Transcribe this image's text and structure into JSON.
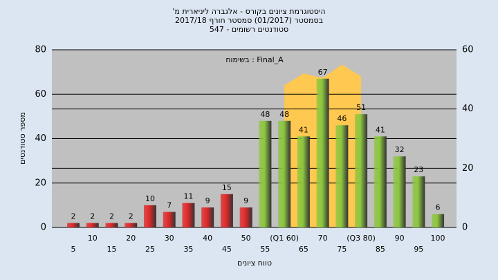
{
  "chart_data": {
    "type": "bar",
    "title": [
      "היסטוגרמת ציונים בקורס - אלגברה ליניארית מ'",
      "בסמסטר  (01/2017)  סמסטר חורף 2017/18",
      "סטודנטים רשומים - 547"
    ],
    "annotation": "בשימוח : Final_A",
    "x_label": "טווח ציונים",
    "y_label": "מספר סטודנטים",
    "categories": [
      "5",
      "10",
      "15",
      "20",
      "25",
      "30",
      "35",
      "40",
      "45",
      "50",
      "55",
      "(Q1 60)",
      "65",
      "70",
      "75",
      "(Q3 80)",
      "85",
      "90",
      "95",
      "100"
    ],
    "values": [
      2,
      2,
      2,
      2,
      10,
      7,
      11,
      9,
      15,
      9,
      48,
      48,
      41,
      67,
      46,
      51,
      41,
      32,
      23,
      6
    ],
    "colors": [
      "#e02828",
      "#e02828",
      "#e02828",
      "#e02828",
      "#e02828",
      "#e02828",
      "#e02828",
      "#e02828",
      "#e02828",
      "#e02828",
      "#8cc63f",
      "#8cc63f",
      "#8cc63f",
      "#8cc63f",
      "#8cc63f",
      "#8cc63f",
      "#8cc63f",
      "#8cc63f",
      "#8cc63f",
      "#8cc63f"
    ],
    "area": {
      "axis": "y2",
      "color": "#ffc850",
      "values": [
        null,
        null,
        null,
        null,
        null,
        null,
        null,
        null,
        null,
        null,
        null,
        48,
        52,
        50.5,
        55,
        51,
        null,
        null,
        null,
        null
      ]
    },
    "ylim": [
      0,
      80
    ],
    "yticks": [
      0,
      20,
      40,
      60,
      80
    ],
    "y2lim": [
      0,
      60
    ],
    "y2ticks": [
      0,
      20,
      40,
      60
    ],
    "grid": true
  }
}
